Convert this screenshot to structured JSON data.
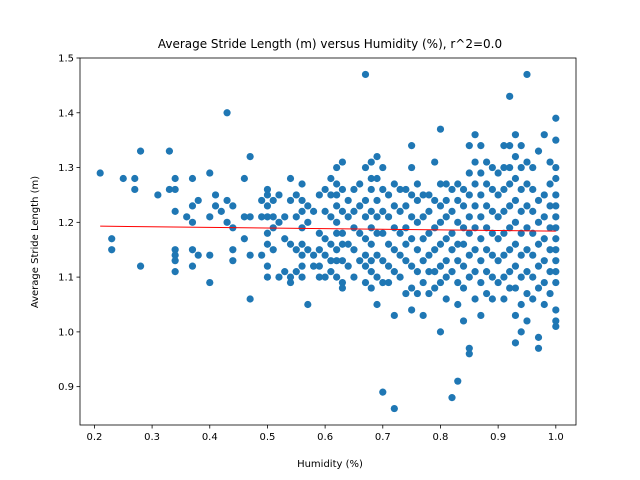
{
  "chart_data": {
    "type": "scatter",
    "title": "Average Stride Length (m) versus Humidity (%), r^2=0.0",
    "xlabel": "Humidity (%)",
    "ylabel": "Average Stride Length (m)",
    "xlim": [
      0.175,
      1.035
    ],
    "ylim": [
      0.83,
      1.5
    ],
    "xticks": [
      0.2,
      0.3,
      0.4,
      0.5,
      0.6,
      0.7,
      0.8,
      0.9,
      1.0
    ],
    "xtick_labels": [
      "0.2",
      "0.3",
      "0.4",
      "0.5",
      "0.6",
      "0.7",
      "0.8",
      "0.9",
      "1.0"
    ],
    "yticks": [
      0.9,
      1.0,
      1.1,
      1.2,
      1.3,
      1.4,
      1.5
    ],
    "ytick_labels": [
      "0.9",
      "1.0",
      "1.1",
      "1.2",
      "1.3",
      "1.4",
      "1.5"
    ],
    "grid": false,
    "point_color": "#1f77b4",
    "fit_line_color": "#ff0000",
    "fit_line": {
      "x": [
        0.21,
        1.0
      ],
      "y": [
        1.193,
        1.184
      ]
    },
    "points": [
      [
        0.21,
        1.29
      ],
      [
        0.23,
        1.17
      ],
      [
        0.23,
        1.15
      ],
      [
        0.25,
        1.28
      ],
      [
        0.27,
        1.28
      ],
      [
        0.27,
        1.26
      ],
      [
        0.28,
        1.33
      ],
      [
        0.28,
        1.12
      ],
      [
        0.31,
        1.25
      ],
      [
        0.33,
        1.33
      ],
      [
        0.33,
        1.26
      ],
      [
        0.34,
        1.28
      ],
      [
        0.34,
        1.26
      ],
      [
        0.34,
        1.22
      ],
      [
        0.34,
        1.15
      ],
      [
        0.34,
        1.14
      ],
      [
        0.34,
        1.13
      ],
      [
        0.34,
        1.11
      ],
      [
        0.36,
        1.21
      ],
      [
        0.37,
        1.28
      ],
      [
        0.37,
        1.23
      ],
      [
        0.37,
        1.2
      ],
      [
        0.37,
        1.15
      ],
      [
        0.37,
        1.12
      ],
      [
        0.38,
        1.24
      ],
      [
        0.38,
        1.14
      ],
      [
        0.4,
        1.29
      ],
      [
        0.4,
        1.21
      ],
      [
        0.4,
        1.14
      ],
      [
        0.4,
        1.09
      ],
      [
        0.41,
        1.25
      ],
      [
        0.41,
        1.23
      ],
      [
        0.42,
        1.22
      ],
      [
        0.43,
        1.4
      ],
      [
        0.43,
        1.24
      ],
      [
        0.43,
        1.2
      ],
      [
        0.44,
        1.23
      ],
      [
        0.44,
        1.19
      ],
      [
        0.44,
        1.15
      ],
      [
        0.44,
        1.13
      ],
      [
        0.46,
        1.28
      ],
      [
        0.46,
        1.21
      ],
      [
        0.46,
        1.17
      ],
      [
        0.47,
        1.32
      ],
      [
        0.47,
        1.21
      ],
      [
        0.47,
        1.14
      ],
      [
        0.47,
        1.06
      ],
      [
        0.49,
        1.24
      ],
      [
        0.49,
        1.21
      ],
      [
        0.49,
        1.14
      ],
      [
        0.5,
        1.26
      ],
      [
        0.5,
        1.25
      ],
      [
        0.5,
        1.23
      ],
      [
        0.5,
        1.21
      ],
      [
        0.5,
        1.18
      ],
      [
        0.5,
        1.16
      ],
      [
        0.5,
        1.12
      ],
      [
        0.5,
        1.1
      ],
      [
        0.51,
        1.24
      ],
      [
        0.51,
        1.21
      ],
      [
        0.51,
        1.19
      ],
      [
        0.51,
        1.15
      ],
      [
        0.52,
        1.25
      ],
      [
        0.52,
        1.2
      ],
      [
        0.52,
        1.1
      ],
      [
        0.53,
        1.21
      ],
      [
        0.53,
        1.17
      ],
      [
        0.53,
        1.11
      ],
      [
        0.54,
        1.28
      ],
      [
        0.54,
        1.24
      ],
      [
        0.54,
        1.16
      ],
      [
        0.54,
        1.1
      ],
      [
        0.54,
        1.09
      ],
      [
        0.55,
        1.25
      ],
      [
        0.55,
        1.21
      ],
      [
        0.55,
        1.15
      ],
      [
        0.55,
        1.11
      ],
      [
        0.56,
        1.27
      ],
      [
        0.56,
        1.24
      ],
      [
        0.56,
        1.22
      ],
      [
        0.56,
        1.19
      ],
      [
        0.56,
        1.16
      ],
      [
        0.56,
        1.14
      ],
      [
        0.56,
        1.12
      ],
      [
        0.56,
        1.1
      ],
      [
        0.57,
        1.23
      ],
      [
        0.57,
        1.2
      ],
      [
        0.57,
        1.15
      ],
      [
        0.57,
        1.05
      ],
      [
        0.58,
        1.22
      ],
      [
        0.58,
        1.14
      ],
      [
        0.58,
        1.12
      ],
      [
        0.59,
        1.25
      ],
      [
        0.59,
        1.18
      ],
      [
        0.59,
        1.15
      ],
      [
        0.59,
        1.12
      ],
      [
        0.59,
        1.1
      ],
      [
        0.6,
        1.26
      ],
      [
        0.6,
        1.22
      ],
      [
        0.6,
        1.17
      ],
      [
        0.6,
        1.14
      ],
      [
        0.6,
        1.1
      ],
      [
        0.61,
        1.28
      ],
      [
        0.61,
        1.25
      ],
      [
        0.61,
        1.21
      ],
      [
        0.61,
        1.16
      ],
      [
        0.61,
        1.13
      ],
      [
        0.61,
        1.11
      ],
      [
        0.62,
        1.3
      ],
      [
        0.62,
        1.27
      ],
      [
        0.62,
        1.25
      ],
      [
        0.62,
        1.23
      ],
      [
        0.62,
        1.2
      ],
      [
        0.62,
        1.18
      ],
      [
        0.62,
        1.15
      ],
      [
        0.62,
        1.13
      ],
      [
        0.62,
        1.1
      ],
      [
        0.63,
        1.31
      ],
      [
        0.63,
        1.26
      ],
      [
        0.63,
        1.22
      ],
      [
        0.63,
        1.18
      ],
      [
        0.63,
        1.16
      ],
      [
        0.63,
        1.13
      ],
      [
        0.63,
        1.09
      ],
      [
        0.63,
        1.08
      ],
      [
        0.64,
        1.24
      ],
      [
        0.64,
        1.21
      ],
      [
        0.64,
        1.16
      ],
      [
        0.64,
        1.12
      ],
      [
        0.65,
        1.26
      ],
      [
        0.65,
        1.22
      ],
      [
        0.65,
        1.19
      ],
      [
        0.65,
        1.15
      ],
      [
        0.65,
        1.1
      ],
      [
        0.66,
        1.27
      ],
      [
        0.66,
        1.23
      ],
      [
        0.66,
        1.18
      ],
      [
        0.66,
        1.13
      ],
      [
        0.67,
        1.47
      ],
      [
        0.67,
        1.3
      ],
      [
        0.67,
        1.24
      ],
      [
        0.67,
        1.21
      ],
      [
        0.67,
        1.17
      ],
      [
        0.67,
        1.14
      ],
      [
        0.67,
        1.12
      ],
      [
        0.67,
        1.09
      ],
      [
        0.68,
        1.31
      ],
      [
        0.68,
        1.28
      ],
      [
        0.68,
        1.26
      ],
      [
        0.68,
        1.22
      ],
      [
        0.68,
        1.19
      ],
      [
        0.68,
        1.16
      ],
      [
        0.68,
        1.13
      ],
      [
        0.68,
        1.11
      ],
      [
        0.68,
        1.08
      ],
      [
        0.69,
        1.32
      ],
      [
        0.69,
        1.28
      ],
      [
        0.69,
        1.24
      ],
      [
        0.69,
        1.21
      ],
      [
        0.69,
        1.18
      ],
      [
        0.69,
        1.14
      ],
      [
        0.69,
        1.1
      ],
      [
        0.69,
        1.05
      ],
      [
        0.7,
        1.3
      ],
      [
        0.7,
        1.26
      ],
      [
        0.7,
        1.22
      ],
      [
        0.7,
        1.18
      ],
      [
        0.7,
        1.13
      ],
      [
        0.7,
        1.09
      ],
      [
        0.7,
        0.89
      ],
      [
        0.71,
        1.25
      ],
      [
        0.71,
        1.21
      ],
      [
        0.71,
        1.16
      ],
      [
        0.71,
        1.12
      ],
      [
        0.71,
        1.09
      ],
      [
        0.72,
        1.27
      ],
      [
        0.72,
        1.23
      ],
      [
        0.72,
        1.19
      ],
      [
        0.72,
        1.15
      ],
      [
        0.72,
        1.11
      ],
      [
        0.72,
        1.03
      ],
      [
        0.72,
        0.86
      ],
      [
        0.73,
        1.26
      ],
      [
        0.73,
        1.22
      ],
      [
        0.73,
        1.18
      ],
      [
        0.73,
        1.14
      ],
      [
        0.73,
        1.1
      ],
      [
        0.74,
        1.26
      ],
      [
        0.74,
        1.23
      ],
      [
        0.74,
        1.19
      ],
      [
        0.74,
        1.16
      ],
      [
        0.74,
        1.13
      ],
      [
        0.74,
        1.07
      ],
      [
        0.75,
        1.34
      ],
      [
        0.75,
        1.3
      ],
      [
        0.75,
        1.25
      ],
      [
        0.75,
        1.21
      ],
      [
        0.75,
        1.17
      ],
      [
        0.75,
        1.12
      ],
      [
        0.75,
        1.08
      ],
      [
        0.75,
        1.04
      ],
      [
        0.76,
        1.27
      ],
      [
        0.76,
        1.24
      ],
      [
        0.76,
        1.2
      ],
      [
        0.76,
        1.15
      ],
      [
        0.76,
        1.11
      ],
      [
        0.76,
        1.07
      ],
      [
        0.77,
        1.25
      ],
      [
        0.77,
        1.21
      ],
      [
        0.77,
        1.17
      ],
      [
        0.77,
        1.13
      ],
      [
        0.77,
        1.09
      ],
      [
        0.77,
        1.03
      ],
      [
        0.78,
        1.25
      ],
      [
        0.78,
        1.22
      ],
      [
        0.78,
        1.18
      ],
      [
        0.78,
        1.14
      ],
      [
        0.78,
        1.11
      ],
      [
        0.78,
        1.07
      ],
      [
        0.79,
        1.31
      ],
      [
        0.79,
        1.24
      ],
      [
        0.79,
        1.19
      ],
      [
        0.79,
        1.15
      ],
      [
        0.79,
        1.11
      ],
      [
        0.79,
        1.08
      ],
      [
        0.8,
        1.37
      ],
      [
        0.8,
        1.27
      ],
      [
        0.8,
        1.23
      ],
      [
        0.8,
        1.2
      ],
      [
        0.8,
        1.16
      ],
      [
        0.8,
        1.12
      ],
      [
        0.8,
        1.09
      ],
      [
        0.8,
        1.0
      ],
      [
        0.81,
        1.27
      ],
      [
        0.81,
        1.24
      ],
      [
        0.81,
        1.21
      ],
      [
        0.81,
        1.17
      ],
      [
        0.81,
        1.13
      ],
      [
        0.81,
        1.1
      ],
      [
        0.81,
        1.06
      ],
      [
        0.82,
        1.26
      ],
      [
        0.82,
        1.22
      ],
      [
        0.82,
        1.18
      ],
      [
        0.82,
        1.15
      ],
      [
        0.82,
        1.11
      ],
      [
        0.82,
        0.88
      ],
      [
        0.83,
        1.27
      ],
      [
        0.83,
        1.24
      ],
      [
        0.83,
        1.2
      ],
      [
        0.83,
        1.16
      ],
      [
        0.83,
        1.13
      ],
      [
        0.83,
        1.09
      ],
      [
        0.83,
        1.05
      ],
      [
        0.83,
        0.91
      ],
      [
        0.84,
        1.26
      ],
      [
        0.84,
        1.23
      ],
      [
        0.84,
        1.19
      ],
      [
        0.84,
        1.16
      ],
      [
        0.84,
        1.12
      ],
      [
        0.84,
        1.08
      ],
      [
        0.84,
        1.02
      ],
      [
        0.85,
        1.34
      ],
      [
        0.85,
        1.29
      ],
      [
        0.85,
        1.25
      ],
      [
        0.85,
        1.21
      ],
      [
        0.85,
        1.18
      ],
      [
        0.85,
        1.14
      ],
      [
        0.85,
        1.1
      ],
      [
        0.85,
        0.97
      ],
      [
        0.85,
        0.96
      ],
      [
        0.86,
        1.36
      ],
      [
        0.86,
        1.31
      ],
      [
        0.86,
        1.27
      ],
      [
        0.86,
        1.23
      ],
      [
        0.86,
        1.19
      ],
      [
        0.86,
        1.15
      ],
      [
        0.86,
        1.11
      ],
      [
        0.86,
        1.06
      ],
      [
        0.87,
        1.34
      ],
      [
        0.87,
        1.29
      ],
      [
        0.87,
        1.25
      ],
      [
        0.87,
        1.21
      ],
      [
        0.87,
        1.17
      ],
      [
        0.87,
        1.13
      ],
      [
        0.87,
        1.09
      ],
      [
        0.87,
        1.03
      ],
      [
        0.88,
        1.31
      ],
      [
        0.88,
        1.27
      ],
      [
        0.88,
        1.23
      ],
      [
        0.88,
        1.19
      ],
      [
        0.88,
        1.15
      ],
      [
        0.88,
        1.11
      ],
      [
        0.88,
        1.07
      ],
      [
        0.89,
        1.3
      ],
      [
        0.89,
        1.26
      ],
      [
        0.89,
        1.22
      ],
      [
        0.89,
        1.18
      ],
      [
        0.89,
        1.14
      ],
      [
        0.89,
        1.1
      ],
      [
        0.89,
        1.06
      ],
      [
        0.9,
        1.29
      ],
      [
        0.9,
        1.25
      ],
      [
        0.9,
        1.21
      ],
      [
        0.9,
        1.17
      ],
      [
        0.9,
        1.13
      ],
      [
        0.9,
        1.09
      ],
      [
        0.91,
        1.34
      ],
      [
        0.91,
        1.3
      ],
      [
        0.91,
        1.26
      ],
      [
        0.91,
        1.22
      ],
      [
        0.91,
        1.18
      ],
      [
        0.91,
        1.14
      ],
      [
        0.91,
        1.1
      ],
      [
        0.91,
        1.06
      ],
      [
        0.92,
        1.43
      ],
      [
        0.92,
        1.34
      ],
      [
        0.92,
        1.3
      ],
      [
        0.92,
        1.27
      ],
      [
        0.92,
        1.23
      ],
      [
        0.92,
        1.19
      ],
      [
        0.92,
        1.15
      ],
      [
        0.92,
        1.11
      ],
      [
        0.92,
        1.08
      ],
      [
        0.93,
        1.36
      ],
      [
        0.93,
        1.32
      ],
      [
        0.93,
        1.28
      ],
      [
        0.93,
        1.24
      ],
      [
        0.93,
        1.2
      ],
      [
        0.93,
        1.16
      ],
      [
        0.93,
        1.12
      ],
      [
        0.93,
        1.08
      ],
      [
        0.93,
        1.03
      ],
      [
        0.93,
        0.98
      ],
      [
        0.94,
        1.34
      ],
      [
        0.94,
        1.3
      ],
      [
        0.94,
        1.26
      ],
      [
        0.94,
        1.22
      ],
      [
        0.94,
        1.18
      ],
      [
        0.94,
        1.14
      ],
      [
        0.94,
        1.1
      ],
      [
        0.94,
        1.05
      ],
      [
        0.94,
        1.0
      ],
      [
        0.95,
        1.47
      ],
      [
        0.95,
        1.31
      ],
      [
        0.95,
        1.27
      ],
      [
        0.95,
        1.23
      ],
      [
        0.95,
        1.19
      ],
      [
        0.95,
        1.15
      ],
      [
        0.95,
        1.11
      ],
      [
        0.95,
        1.07
      ],
      [
        0.95,
        1.02
      ],
      [
        0.96,
        1.3
      ],
      [
        0.96,
        1.26
      ],
      [
        0.96,
        1.22
      ],
      [
        0.96,
        1.18
      ],
      [
        0.96,
        1.14
      ],
      [
        0.96,
        1.1
      ],
      [
        0.96,
        1.06
      ],
      [
        0.97,
        1.33
      ],
      [
        0.97,
        1.24
      ],
      [
        0.97,
        1.2
      ],
      [
        0.97,
        1.16
      ],
      [
        0.97,
        1.12
      ],
      [
        0.97,
        1.08
      ],
      [
        0.97,
        0.99
      ],
      [
        0.97,
        0.97
      ],
      [
        0.98,
        1.36
      ],
      [
        0.98,
        1.25
      ],
      [
        0.98,
        1.21
      ],
      [
        0.98,
        1.17
      ],
      [
        0.98,
        1.13
      ],
      [
        0.98,
        1.09
      ],
      [
        0.98,
        1.05
      ],
      [
        0.99,
        1.31
      ],
      [
        0.99,
        1.27
      ],
      [
        0.99,
        1.23
      ],
      [
        0.99,
        1.19
      ],
      [
        0.99,
        1.15
      ],
      [
        0.99,
        1.11
      ],
      [
        0.99,
        1.07
      ],
      [
        1.0,
        1.39
      ],
      [
        1.0,
        1.35
      ],
      [
        1.0,
        1.3
      ],
      [
        1.0,
        1.28
      ],
      [
        1.0,
        1.25
      ],
      [
        1.0,
        1.23
      ],
      [
        1.0,
        1.21
      ],
      [
        1.0,
        1.19
      ],
      [
        1.0,
        1.17
      ],
      [
        1.0,
        1.15
      ],
      [
        1.0,
        1.13
      ],
      [
        1.0,
        1.11
      ],
      [
        1.0,
        1.09
      ],
      [
        1.0,
        1.04
      ],
      [
        1.0,
        1.02
      ],
      [
        1.0,
        1.01
      ]
    ]
  }
}
